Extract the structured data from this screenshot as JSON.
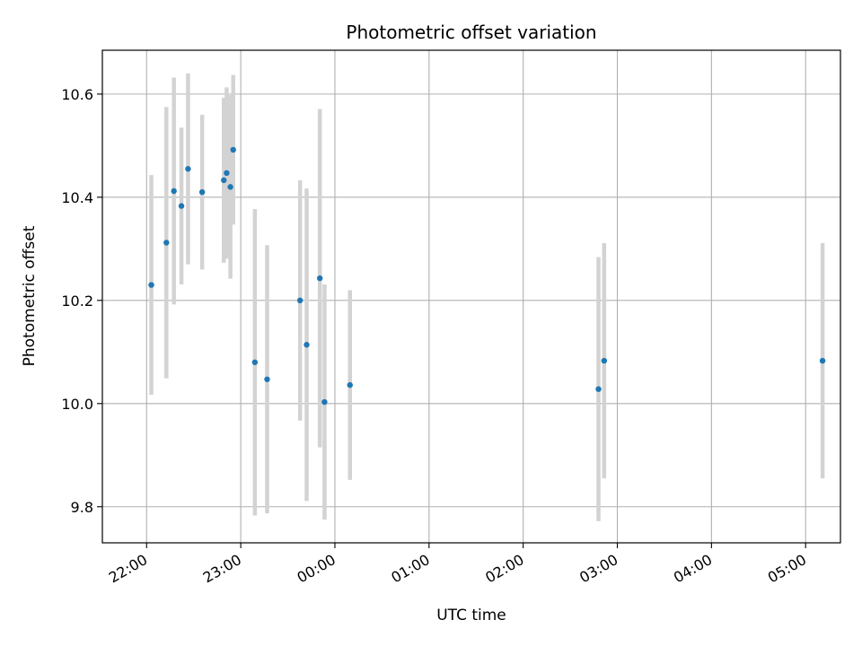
{
  "chart_data": {
    "type": "scatter",
    "title": "Photometric offset variation",
    "xlabel": "UTC time",
    "ylabel": "Photometric offset",
    "x_unit": "hours UTC (values past 24 are the following day)",
    "xlim": [
      21.53,
      29.37
    ],
    "ylim": [
      9.73,
      10.685
    ],
    "x_ticks": [
      22,
      23,
      24,
      25,
      26,
      27,
      28,
      29
    ],
    "x_tick_labels": [
      "22:00",
      "23:00",
      "00:00",
      "01:00",
      "02:00",
      "03:00",
      "04:00",
      "05:00"
    ],
    "y_ticks": [
      9.8,
      10.0,
      10.2,
      10.4,
      10.6
    ],
    "y_tick_labels": [
      "9.8",
      "10.0",
      "10.2",
      "10.4",
      "10.6"
    ],
    "grid": true,
    "point_color": "#1f77b4",
    "errorbar_color": "#d3d3d3",
    "points": [
      {
        "x": 22.05,
        "y": 10.23,
        "yerr": 0.213
      },
      {
        "x": 22.21,
        "y": 10.312,
        "yerr": 0.263
      },
      {
        "x": 22.29,
        "y": 10.412,
        "yerr": 0.22
      },
      {
        "x": 22.37,
        "y": 10.383,
        "yerr": 0.152
      },
      {
        "x": 22.44,
        "y": 10.455,
        "yerr": 0.185
      },
      {
        "x": 22.59,
        "y": 10.41,
        "yerr": 0.15
      },
      {
        "x": 22.82,
        "y": 10.433,
        "yerr": 0.16
      },
      {
        "x": 22.85,
        "y": 10.447,
        "yerr": 0.166
      },
      {
        "x": 22.89,
        "y": 10.42,
        "yerr": 0.178
      },
      {
        "x": 22.92,
        "y": 10.492,
        "yerr": 0.145
      },
      {
        "x": 23.15,
        "y": 10.08,
        "yerr": 0.297
      },
      {
        "x": 23.28,
        "y": 10.047,
        "yerr": 0.26
      },
      {
        "x": 23.63,
        "y": 10.2,
        "yerr": 0.233
      },
      {
        "x": 23.7,
        "y": 10.114,
        "yerr": 0.303
      },
      {
        "x": 23.84,
        "y": 10.243,
        "yerr": 0.328
      },
      {
        "x": 23.89,
        "y": 10.003,
        "yerr": 0.228
      },
      {
        "x": 24.16,
        "y": 10.036,
        "yerr": 0.184
      },
      {
        "x": 26.8,
        "y": 10.028,
        "yerr": 0.256
      },
      {
        "x": 26.86,
        "y": 10.083,
        "yerr": 0.228
      },
      {
        "x": 29.18,
        "y": 10.083,
        "yerr": 0.228
      }
    ]
  }
}
